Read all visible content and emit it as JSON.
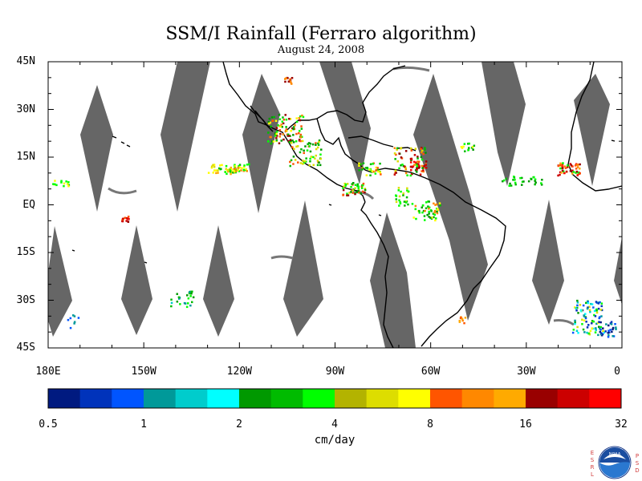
{
  "title": "SSM/I Rainfall (Ferraro algorithm)",
  "subtitle": "August 24, 2008",
  "map": {
    "lon_range": [
      -180,
      0
    ],
    "lat_range": [
      -45,
      45
    ],
    "lat_labels": [
      "45N",
      "30N",
      "15N",
      "EQ",
      "15S",
      "30S",
      "45S"
    ],
    "lat_values": [
      45,
      30,
      15,
      0,
      -15,
      -30,
      -45
    ],
    "lon_labels": [
      "180E",
      "150W",
      "120W",
      "90W",
      "60W",
      "30W",
      "0"
    ],
    "lon_values": [
      -180,
      -150,
      -120,
      -90,
      -60,
      -30,
      0
    ],
    "no_data_color": "#666666",
    "coastline_color": "#000000"
  },
  "colorbar": {
    "colors": [
      "#001a80",
      "#0033bb",
      "#0055ff",
      "#009999",
      "#00cccc",
      "#00ffff",
      "#009900",
      "#00bb00",
      "#00ff00",
      "#b3b300",
      "#dddd00",
      "#ffff00",
      "#ff5500",
      "#ff8800",
      "#ffaa00",
      "#990000",
      "#cc0000",
      "#ff0000"
    ],
    "tick_labels": [
      "0.5",
      "1",
      "2",
      "4",
      "8",
      "16",
      "32"
    ],
    "unit": "cm/day"
  },
  "logo": {
    "left_letters": [
      "E",
      "S",
      "R",
      "L"
    ],
    "right_letters": [
      "P",
      "S",
      "D"
    ],
    "name": "NOAA",
    "icon": "noaa-logo-icon"
  }
}
